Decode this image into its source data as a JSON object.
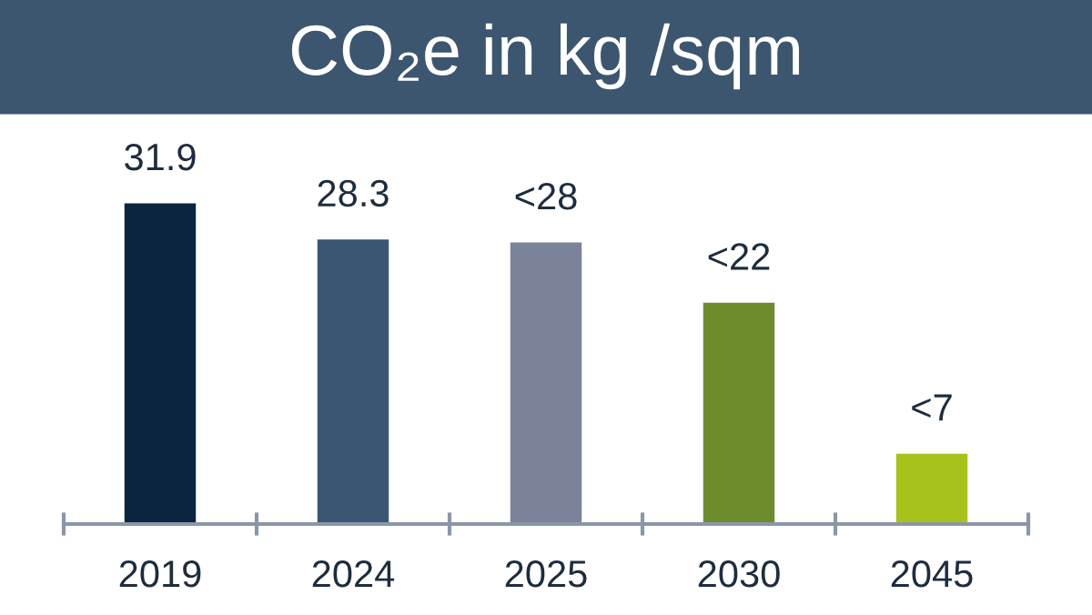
{
  "chart_data": {
    "type": "bar",
    "title": "CO₂e in kg /sqm",
    "categories": [
      "2019",
      "2024",
      "2025",
      "2030",
      "2045"
    ],
    "values": [
      31.9,
      28.3,
      28,
      22,
      7
    ],
    "value_labels": [
      "31.9",
      "28.3",
      "<28",
      "<22",
      "<7"
    ],
    "colors": [
      "#0b2440",
      "#3b5672",
      "#7a8399",
      "#6e8b2e",
      "#a8c21c"
    ],
    "grid": false,
    "legend": false
  }
}
